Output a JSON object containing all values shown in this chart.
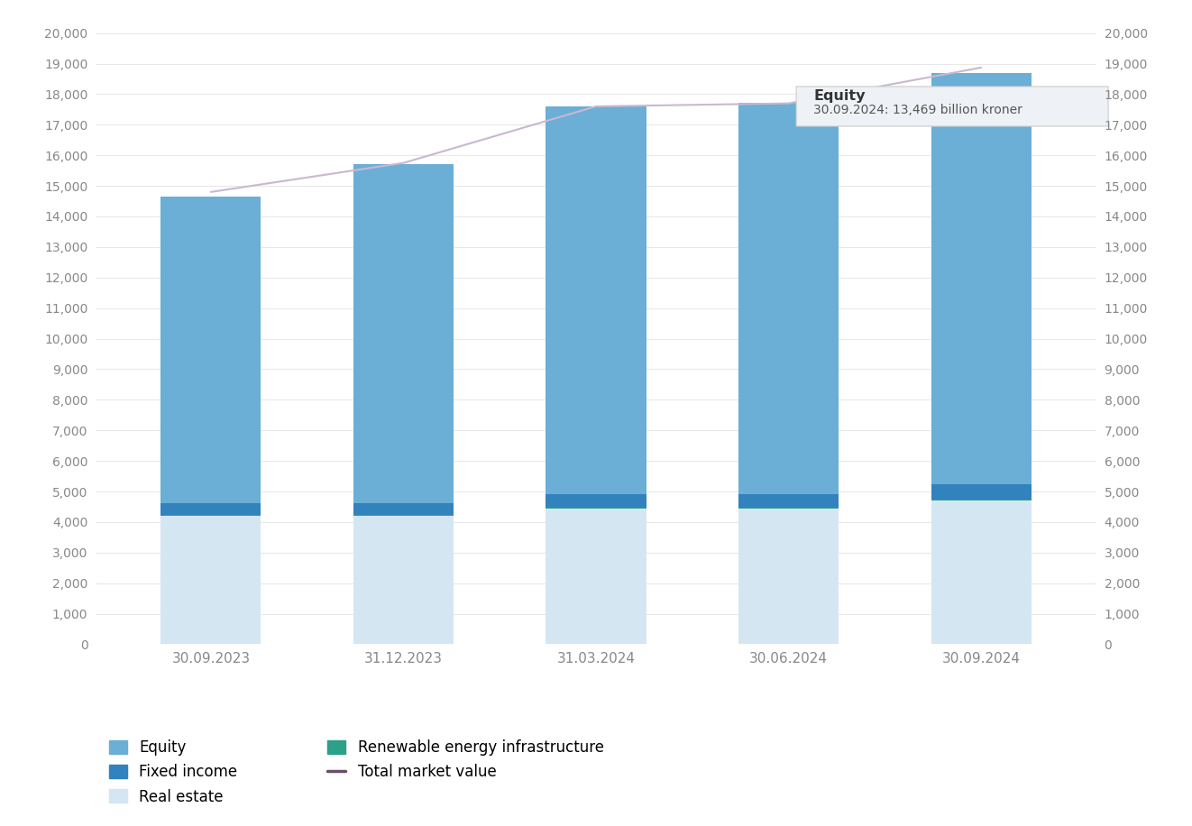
{
  "dates": [
    "30.09.2023",
    "31.12.2023",
    "31.03.2024",
    "30.06.2024",
    "30.09.2024"
  ],
  "equity": [
    10050,
    11100,
    12700,
    12800,
    13469
  ],
  "fixed_income": [
    380,
    380,
    430,
    430,
    490
  ],
  "real_estate": [
    4200,
    4200,
    4450,
    4450,
    4700
  ],
  "renewable": [
    25,
    25,
    30,
    30,
    35
  ],
  "total_market_value": [
    14800,
    15750,
    17600,
    17700,
    18870
  ],
  "equity_color": "#6BAED6",
  "fixed_income_color": "#3182BD",
  "real_estate_color": "#D4E6F1",
  "renewable_color": "#2CA089",
  "line_color": "#C9B8D0",
  "background_color": "#FFFFFF",
  "ylim": [
    0,
    20000
  ],
  "yticks": [
    0,
    1000,
    2000,
    3000,
    4000,
    5000,
    6000,
    7000,
    8000,
    9000,
    10000,
    11000,
    12000,
    13000,
    14000,
    15000,
    16000,
    17000,
    18000,
    19000,
    20000
  ],
  "tick_fontsize": 10,
  "xlabel_fontsize": 11,
  "legend_fontsize": 12,
  "tooltip_bar_index": 4,
  "tooltip_label": "Equity",
  "tooltip_date": "30.09.2024",
  "tooltip_value": "13,469",
  "tooltip_unit": " billion kroner",
  "bar_width": 0.52
}
